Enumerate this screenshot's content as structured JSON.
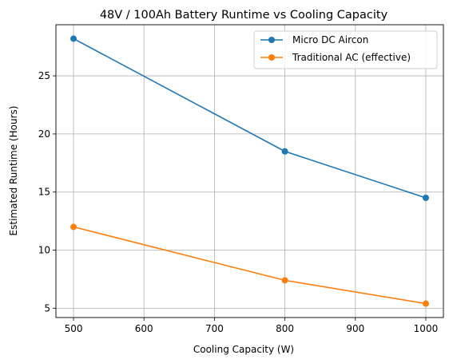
{
  "chart_data": {
    "type": "line",
    "title": "48V / 100Ah Battery Runtime vs Cooling Capacity",
    "xlabel": "Cooling Capacity (W)",
    "ylabel": "Estimated Runtime (Hours)",
    "x": [
      500,
      800,
      1000
    ],
    "xlim": [
      475,
      1025
    ],
    "ylim": [
      4.2,
      29.4
    ],
    "xticks": [
      500,
      600,
      700,
      800,
      900,
      1000
    ],
    "yticks": [
      5,
      10,
      15,
      20,
      25
    ],
    "grid": true,
    "legend_position": "top-right",
    "series": [
      {
        "name": "Micro DC Aircon",
        "color": "#1f77b4",
        "values": [
          28.2,
          18.5,
          14.5
        ]
      },
      {
        "name": "Traditional AC (effective)",
        "color": "#ff7f0e",
        "values": [
          12.0,
          7.4,
          5.4
        ]
      }
    ]
  }
}
